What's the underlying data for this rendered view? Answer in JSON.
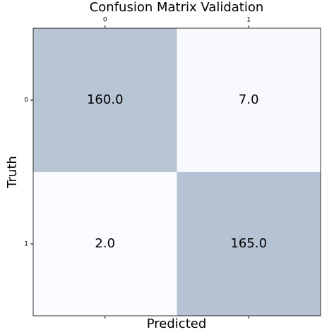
{
  "chart_data": {
    "type": "heatmap",
    "title": "Confusion Matrix Validation",
    "x_label": "Predicted",
    "y_label": "Truth",
    "x_categories": [
      "0",
      "1"
    ],
    "y_categories": [
      "0",
      "1"
    ],
    "values": [
      [
        160,
        7
      ],
      [
        2,
        165
      ]
    ],
    "value_labels": [
      [
        "160.0",
        "7.0"
      ],
      [
        "2.0",
        "165.0"
      ]
    ],
    "colors": [
      "#fafbfe",
      "#b6c3d4"
    ]
  }
}
